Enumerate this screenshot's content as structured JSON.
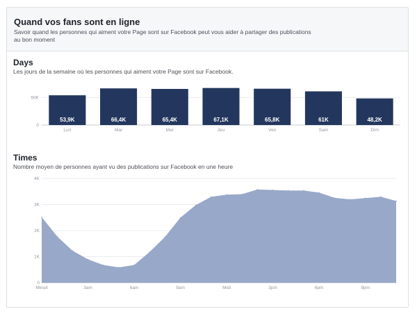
{
  "header": {
    "title": "Quand vos fans sont en ligne",
    "subtitle": "Savoir quand les personnes qui aiment votre Page sont sur Facebook peut vous aider à partager des publications au bon moment"
  },
  "days_section": {
    "title": "Days",
    "description": "Les jours de la semaine où les personnes qui aiment votre Page sont sur Facebook."
  },
  "times_section": {
    "title": "Times",
    "description": "Nombre moyen de personnes ayant vu des publications sur Facebook en une heure"
  },
  "colors": {
    "bar": "#23375e",
    "area": "#98a8c9",
    "grid": "#e9ebee",
    "axis": "#c8cbd0"
  },
  "chart_data": [
    {
      "type": "bar",
      "title": "Days",
      "categories": [
        "Lun",
        "Mar",
        "Mer",
        "Jeu",
        "Ven",
        "Sam",
        "Dim"
      ],
      "values": [
        53900,
        66400,
        65400,
        67100,
        65800,
        61000,
        48200
      ],
      "data_labels": [
        "53,9K",
        "66,4K",
        "65,4K",
        "67,1K",
        "65,8K",
        "61K",
        "48,2K"
      ],
      "ylim": [
        0,
        78000
      ],
      "yticks": [
        0,
        50000
      ],
      "ytick_labels": [
        "0",
        "50K"
      ]
    },
    {
      "type": "area",
      "title": "Times",
      "x": [
        0,
        1,
        2,
        3,
        4,
        5,
        6,
        7,
        8,
        9,
        10,
        11,
        12,
        13,
        14,
        15,
        16,
        17,
        18,
        19,
        20,
        21,
        22,
        23
      ],
      "values": [
        2520,
        1780,
        1230,
        900,
        680,
        590,
        680,
        1180,
        1760,
        2500,
        2980,
        3300,
        3380,
        3400,
        3580,
        3560,
        3540,
        3540,
        3460,
        3260,
        3200,
        3250,
        3300,
        3140
      ],
      "ylim": [
        0,
        4000
      ],
      "yticks": [
        0,
        1000,
        2000,
        3000,
        4000
      ],
      "ytick_labels": [
        "0",
        "1K",
        "2K",
        "3K",
        "4K"
      ],
      "xticks": [
        0,
        3,
        6,
        9,
        12,
        15,
        18,
        21
      ],
      "xtick_labels": [
        "Minuit",
        "3am",
        "6am",
        "9am",
        "Midi",
        "3pm",
        "6pm",
        "9pm"
      ]
    }
  ]
}
